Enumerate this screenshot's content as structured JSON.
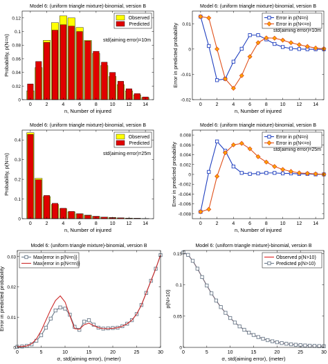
{
  "chart_data": [
    {
      "id": "a",
      "type": "bar",
      "title": "Model 6: (uniform triangle mixture)-binomial, version B",
      "xlabel": "n, Number of injured",
      "ylabel": "Probability, p(N=n)",
      "annotation": "std(aiming error)=10m",
      "xlim": [
        -1,
        15
      ],
      "ylim": [
        0,
        0.13
      ],
      "xticks": [
        0,
        2,
        4,
        6,
        8,
        10,
        12,
        14
      ],
      "yticks": [
        0,
        0.02,
        0.04,
        0.06,
        0.08,
        0.1,
        0.12
      ],
      "ytick_labels": [
        "0",
        "0.02",
        "0.04",
        "0.06",
        "0.08",
        "0.1",
        "0.12"
      ],
      "legend": {
        "location": "top-right",
        "entries": [
          "Observed",
          "Predicted"
        ]
      },
      "colors": {
        "Observed": "#ffff00",
        "Predicted": "#e00000"
      },
      "categories": [
        0,
        1,
        2,
        3,
        4,
        5,
        6,
        7,
        8,
        9,
        10,
        11,
        12,
        13,
        14
      ],
      "series": [
        {
          "name": "Observed",
          "values": [
            0.013,
            0.047,
            0.087,
            0.113,
            0.123,
            0.12,
            0.106,
            0.087,
            0.068,
            0.05,
            0.034,
            0.022,
            0.013,
            0.007,
            0.003
          ]
        },
        {
          "name": "Predicted",
          "values": [
            0.023,
            0.056,
            0.084,
            0.102,
            0.11,
            0.108,
            0.1,
            0.086,
            0.071,
            0.055,
            0.04,
            0.027,
            0.016,
            0.009,
            0.004
          ]
        }
      ]
    },
    {
      "id": "b",
      "type": "line",
      "title": "Model 6: (uniform triangle mixture)-binomial, version B",
      "xlabel": "n, Number of injured",
      "ylabel": "Error in predicted probability",
      "annotation": "std(aiming error)=10m",
      "xlim": [
        -1,
        15
      ],
      "ylim": [
        -0.02,
        0.015
      ],
      "xticks": [
        0,
        2,
        4,
        6,
        8,
        10,
        12,
        14
      ],
      "yticks": [
        -0.02,
        -0.01,
        0,
        0.01
      ],
      "ytick_labels": [
        "-0.02",
        "-0.01",
        "0",
        "0.01"
      ],
      "legend": {
        "location": "top-right"
      },
      "x": [
        0,
        1,
        2,
        3,
        4,
        5,
        6,
        7,
        8,
        9,
        10,
        11,
        12,
        13,
        14,
        15
      ],
      "series": [
        {
          "name": "Error in p(N=n)",
          "color": "#1f3fbf",
          "marker": "square",
          "values": [
            0.0128,
            0.0012,
            -0.0123,
            -0.0118,
            -0.005,
            0.0001,
            0.0055,
            0.0055,
            0.0038,
            0.002,
            0.0008,
            0.0002,
            0.0,
            -0.0001,
            -0.0001,
            -0.0001
          ]
        },
        {
          "name": "Error in p(N<=n)",
          "color": "#e0501a",
          "marker": "diamond",
          "values": [
            0.0128,
            0.0123,
            0.0,
            -0.0118,
            -0.0155,
            -0.0105,
            -0.003,
            0.0025,
            0.0044,
            0.0043,
            0.0035,
            0.0025,
            0.0017,
            0.001,
            0.0004,
            0.0001
          ]
        }
      ]
    },
    {
      "id": "c",
      "type": "bar",
      "title": "Model 6: (uniform triangle mixture)-binomial, version B",
      "xlabel": "n, Number of injured",
      "ylabel": "Probability, p(N=n)",
      "annotation": "std(aiming error)=25m",
      "xlim": [
        -1,
        15
      ],
      "ylim": [
        0,
        0.45
      ],
      "xticks": [
        0,
        2,
        4,
        6,
        8,
        10,
        12,
        14
      ],
      "yticks": [
        0,
        0.1,
        0.2,
        0.3,
        0.4
      ],
      "ytick_labels": [
        "0",
        "0.1",
        "0.2",
        "0.3",
        "0.4"
      ],
      "legend": {
        "location": "top-right",
        "entries": [
          "Observed",
          "Predicted"
        ]
      },
      "colors": {
        "Observed": "#ffff00",
        "Predicted": "#e00000"
      },
      "categories": [
        0,
        1,
        2,
        3,
        4,
        5,
        6,
        7,
        8,
        9,
        10,
        11,
        12,
        13,
        14
      ],
      "series": [
        {
          "name": "Observed",
          "values": [
            0.437,
            0.205,
            0.112,
            0.072,
            0.051,
            0.035,
            0.025,
            0.018,
            0.012,
            0.008,
            0.006,
            0.004,
            0.003,
            0.002,
            0.001
          ]
        },
        {
          "name": "Predicted",
          "values": [
            0.428,
            0.198,
            0.118,
            0.078,
            0.053,
            0.037,
            0.025,
            0.017,
            0.012,
            0.008,
            0.005,
            0.004,
            0.002,
            0.002,
            0.001
          ]
        }
      ]
    },
    {
      "id": "d",
      "type": "line",
      "title": "Model 6: (uniform triangle mixture)-binomial, version B",
      "xlabel": "n, Number of injured",
      "ylabel": "Error in predicted probability",
      "annotation": "std(aiming error)=25m",
      "xlim": [
        -1,
        15
      ],
      "ylim": [
        -0.009,
        0.009
      ],
      "xticks": [
        0,
        2,
        4,
        6,
        8,
        10,
        12,
        14
      ],
      "yticks": [
        -0.008,
        -0.006,
        -0.004,
        -0.002,
        0,
        0.002,
        0.004,
        0.006,
        0.008
      ],
      "ytick_labels": [
        "-0.008",
        "-0.006",
        "-0.004",
        "-0.002",
        "0",
        "0.002",
        "0.004",
        "0.006",
        "0.008"
      ],
      "legend": {
        "location": "top-right"
      },
      "x": [
        0,
        1,
        2,
        3,
        4,
        5,
        6,
        7,
        8,
        9,
        10,
        11,
        12,
        13,
        14,
        15
      ],
      "series": [
        {
          "name": "Error in p(N=n)",
          "color": "#1f3fbf",
          "marker": "square",
          "values": [
            -0.0076,
            0.0005,
            0.0067,
            0.0048,
            0.0016,
            0.0003,
            0.0001,
            0.0002,
            0.0003,
            0.0003,
            0.0002,
            0.0002,
            0.0001,
            0.0001,
            0.0,
            0.0
          ]
        },
        {
          "name": "Error in p(N<=n)",
          "color": "#e0501a",
          "marker": "diamond",
          "values": [
            -0.0076,
            -0.0071,
            -0.0004,
            0.0044,
            0.006,
            0.0063,
            0.0052,
            0.0036,
            0.0025,
            0.0016,
            0.001,
            0.0006,
            0.0003,
            0.0002,
            0.0001,
            0.0
          ]
        }
      ]
    },
    {
      "id": "e",
      "type": "line",
      "title": "Model 6: (uniform triangle mixture)-binomial, version B",
      "xlabel": "σ, std(aiming error), (meter)",
      "ylabel": "Error in predicted probability",
      "xlim": [
        0,
        30
      ],
      "ylim": [
        0,
        0.032
      ],
      "xticks": [
        0,
        5,
        10,
        15,
        20,
        25,
        30
      ],
      "yticks": [
        0,
        0.01,
        0.02,
        0.03
      ],
      "ytick_labels": [
        "0",
        "0.01",
        "0.02",
        "0.03"
      ],
      "legend": {
        "location": "top-left"
      },
      "x": [
        0,
        1,
        2,
        3,
        4,
        5,
        6,
        7,
        8,
        9,
        10,
        11,
        12,
        13,
        14,
        15,
        16,
        17,
        18,
        19,
        20,
        21,
        22,
        23,
        24,
        25,
        26,
        27,
        28,
        29,
        30
      ],
      "series": [
        {
          "name": "Max{error in p(N=n)}",
          "color": "#6b7a8a",
          "marker": "square",
          "values": [
            0.0002,
            0.0003,
            0.0005,
            0.001,
            0.0022,
            0.004,
            0.0065,
            0.0095,
            0.0122,
            0.0132,
            0.0128,
            0.0108,
            0.0068,
            0.0058,
            0.0085,
            0.009,
            0.0075,
            0.0065,
            0.0062,
            0.0063,
            0.0064,
            0.0065,
            0.007,
            0.0078,
            0.009,
            0.011,
            0.014,
            0.018,
            0.022,
            0.026,
            0.0305
          ]
        },
        {
          "name": "Max{error in p(N<=n)}",
          "color": "#cc2a2a",
          "values": [
            0.0002,
            0.0003,
            0.0005,
            0.0012,
            0.0028,
            0.0055,
            0.009,
            0.0125,
            0.0155,
            0.017,
            0.015,
            0.0105,
            0.0062,
            0.006,
            0.0075,
            0.008,
            0.0072,
            0.0065,
            0.0062,
            0.0062,
            0.0063,
            0.0065,
            0.007,
            0.0078,
            0.009,
            0.011,
            0.014,
            0.018,
            0.022,
            0.026,
            0.0305
          ]
        }
      ]
    },
    {
      "id": "f",
      "type": "line",
      "title": "Model 6: (uniform triangle mixture)-binomial, version B",
      "xlabel": "σ, std(aiming error), (meter)",
      "ylabel": "p(N>10)",
      "xlim": [
        0,
        30
      ],
      "ylim": [
        0,
        0.155
      ],
      "xticks": [
        0,
        5,
        10,
        15,
        20,
        25,
        30
      ],
      "yticks": [
        0,
        0.05,
        0.1,
        0.15
      ],
      "ytick_labels": [
        "0",
        "0.05",
        "0.1",
        "0.15"
      ],
      "legend": {
        "location": "top-right"
      },
      "x": [
        0,
        1,
        2,
        3,
        4,
        5,
        6,
        7,
        8,
        9,
        10,
        11,
        12,
        13,
        14,
        15,
        16,
        17,
        18,
        19,
        20,
        21,
        22,
        23,
        24,
        25,
        26,
        27,
        28,
        29,
        30
      ],
      "series": [
        {
          "name": "Observed p(N>10)",
          "color": "#e02020",
          "values": [
            0.152,
            0.148,
            0.1385,
            0.126,
            0.1125,
            0.099,
            0.0865,
            0.075,
            0.0645,
            0.0553,
            0.047,
            0.0398,
            0.0336,
            0.0282,
            0.0236,
            0.0198,
            0.0165,
            0.0138,
            0.0116,
            0.0098,
            0.0082,
            0.0069,
            0.0058,
            0.0049,
            0.0042,
            0.0036,
            0.0031,
            0.0027,
            0.0024,
            0.0021,
            0.0019
          ]
        },
        {
          "name": "Predicted p(N>10)",
          "color": "#6b7a8a",
          "marker": "square",
          "values": [
            0.152,
            0.148,
            0.1385,
            0.126,
            0.1125,
            0.099,
            0.0865,
            0.075,
            0.0645,
            0.0553,
            0.047,
            0.0398,
            0.0336,
            0.0282,
            0.0236,
            0.0198,
            0.0165,
            0.0138,
            0.0116,
            0.0098,
            0.0082,
            0.0069,
            0.0058,
            0.0049,
            0.0042,
            0.0036,
            0.0031,
            0.0027,
            0.0024,
            0.0021,
            0.0019
          ]
        }
      ]
    }
  ]
}
